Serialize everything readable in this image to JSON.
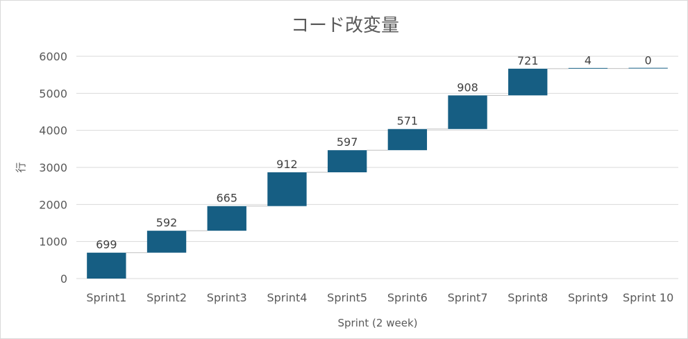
{
  "chart_data": {
    "type": "bar",
    "subtype": "waterfall",
    "title": "コード改変量",
    "xlabel": "Sprint (2 week)",
    "ylabel": "行",
    "categories": [
      "Sprint1",
      "Sprint2",
      "Sprint3",
      "Sprint4",
      "Sprint5",
      "Sprint6",
      "Sprint7",
      "Sprint8",
      "Sprint9",
      "Sprint 10"
    ],
    "values": [
      699,
      592,
      665,
      912,
      597,
      571,
      908,
      721,
      4,
      0
    ],
    "ylim": [
      0,
      6000
    ],
    "yticks": [
      0,
      1000,
      2000,
      3000,
      4000,
      5000,
      6000
    ],
    "grid": true,
    "legend": "none",
    "colors": {
      "bar": "#165E83",
      "grid": "#d9d9d9",
      "connector": "#bfbfbf",
      "text": "#595959"
    }
  }
}
